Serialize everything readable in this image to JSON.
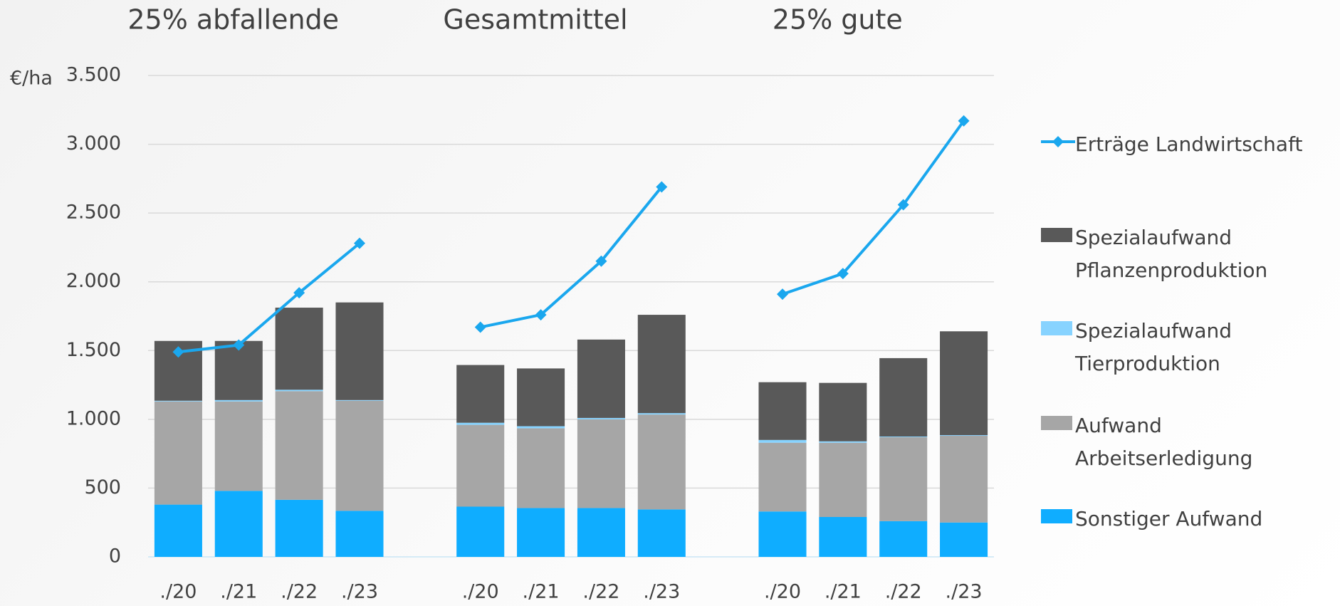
{
  "chart_data": {
    "type": "bar",
    "stacked": true,
    "y_axis_label": "€/ha",
    "groups": [
      "25% abfallende",
      "Gesamtmittel",
      "25% gute"
    ],
    "categories": [
      "./20",
      "./21",
      "./22",
      "./23",
      null,
      "./20",
      "./21",
      "./22",
      "./23",
      null,
      "./20",
      "./21",
      "./22",
      "./23"
    ],
    "series": [
      {
        "name": "Sonstiger Aufwand",
        "color": "#0fadff",
        "type": "bar",
        "values": [
          380,
          480,
          415,
          335,
          null,
          365,
          355,
          355,
          345,
          null,
          330,
          290,
          260,
          250
        ]
      },
      {
        "name": "Aufwand Arbeitserledigung",
        "color": "#a6a6a6",
        "type": "bar",
        "values": [
          750,
          650,
          790,
          800,
          null,
          595,
          580,
          645,
          690,
          null,
          500,
          540,
          610,
          630
        ]
      },
      {
        "name": "Spezialaufwand Tierproduktion",
        "color": "#87d3ff",
        "type": "bar",
        "values": [
          5,
          10,
          10,
          5,
          null,
          15,
          15,
          10,
          10,
          null,
          20,
          10,
          5,
          5
        ]
      },
      {
        "name": "Spezialaufwand Pflanzenproduktion",
        "color": "#595959",
        "type": "bar",
        "values": [
          435,
          430,
          597,
          710,
          null,
          420,
          420,
          570,
          715,
          null,
          420,
          425,
          570,
          755
        ]
      },
      {
        "name": "Erträge Landwirtschaft",
        "color": "#1aa7ee",
        "type": "line",
        "values": [
          1490,
          1540,
          1920,
          2280,
          null,
          1670,
          1760,
          2150,
          2690,
          null,
          1910,
          2060,
          2560,
          3170
        ]
      }
    ],
    "ylim": [
      0,
      3500
    ],
    "yticks": [
      0,
      500,
      {
        "value": 1000,
        "label": "1.000"
      },
      {
        "value": 1500,
        "label": "1.500"
      },
      {
        "value": 2000,
        "label": "2.000"
      },
      {
        "value": 2500,
        "label": "2.500"
      },
      {
        "value": 3000,
        "label": "3.000"
      },
      {
        "value": 3500,
        "label": "3.500"
      }
    ],
    "grid": true,
    "legend": "right"
  }
}
